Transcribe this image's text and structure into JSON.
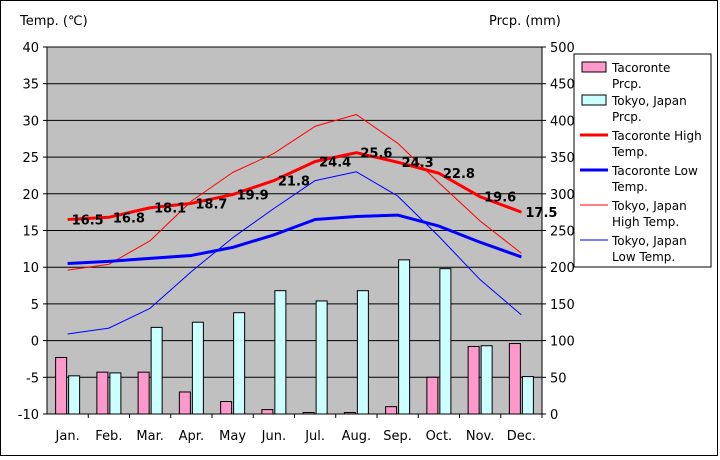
{
  "chart_data": {
    "type": "bar+line",
    "left_axis_label": "Temp. (℃)",
    "right_axis_label": "Prcp. (mm)",
    "categories": [
      "Jan.",
      "Feb.",
      "Mar.",
      "Apr.",
      "May",
      "Jun.",
      "Jul.",
      "Aug.",
      "Sep.",
      "Oct.",
      "Nov.",
      "Dec."
    ],
    "left_ylim": [
      -10,
      40
    ],
    "left_ticks": [
      40,
      35,
      30,
      25,
      20,
      15,
      10,
      5,
      0,
      -5,
      -10
    ],
    "right_ylim": [
      0,
      500
    ],
    "right_ticks": [
      500,
      450,
      400,
      350,
      300,
      250,
      200,
      150,
      100,
      50,
      0
    ],
    "grid": true,
    "legend_position": "right",
    "plot_background": "#c0c0c0",
    "bar_series": [
      {
        "name": "Tacoronte Prcp.",
        "color": "#ff99cc",
        "values": [
          77,
          57,
          57,
          30,
          17,
          6,
          2,
          2,
          10,
          50,
          92,
          96
        ]
      },
      {
        "name": "Tokyo, Japan Prcp.",
        "color": "#ccffff",
        "values": [
          52,
          56,
          118,
          125,
          138,
          168,
          154,
          168,
          210,
          198,
          93,
          51
        ]
      }
    ],
    "line_series": [
      {
        "name": "Tacoronte High Temp.",
        "color": "#ff0000",
        "width": 3,
        "values": [
          16.5,
          16.8,
          18.1,
          18.7,
          19.9,
          21.8,
          24.4,
          25.6,
          24.3,
          22.8,
          19.6,
          17.5
        ],
        "labels": [
          "16.5",
          "16.8",
          "18.1",
          "18.7",
          "19.9",
          "21.8",
          "24.4",
          "25.6",
          "24.3",
          "22.8",
          "19.6",
          "17.5"
        ]
      },
      {
        "name": "Tacoronte Low Temp.",
        "color": "#0000ff",
        "width": 3,
        "values": [
          10.5,
          10.8,
          11.2,
          11.6,
          12.7,
          14.4,
          16.5,
          16.9,
          17.1,
          15.6,
          13.4,
          11.4
        ]
      },
      {
        "name": "Tokyo, Japan High Temp.",
        "color": "#ff0000",
        "width": 1,
        "values": [
          9.6,
          10.4,
          13.6,
          19.0,
          22.9,
          25.5,
          29.2,
          30.8,
          26.9,
          21.5,
          16.3,
          11.9
        ]
      },
      {
        "name": "Tokyo, Japan Low Temp.",
        "color": "#0000ff",
        "width": 1,
        "values": [
          0.9,
          1.7,
          4.4,
          9.4,
          14.0,
          18.0,
          21.8,
          23.0,
          19.7,
          14.2,
          8.3,
          3.5
        ]
      }
    ],
    "legend_entries": [
      {
        "text": "Tacoronte Prcp.",
        "kind": "bar",
        "color": "#ff99cc"
      },
      {
        "text": "Tokyo, Japan Prcp.",
        "kind": "bar",
        "color": "#ccffff"
      },
      {
        "text": "Tacoronte High Temp.",
        "kind": "line",
        "color": "#ff0000",
        "width": 3
      },
      {
        "text": "Tacoronte Low Temp.",
        "kind": "line",
        "color": "#0000ff",
        "width": 3
      },
      {
        "text": "Tokyo, Japan High Temp.",
        "kind": "line",
        "color": "#ff0000",
        "width": 1
      },
      {
        "text": "Tokyo, Japan Low Temp.",
        "kind": "line",
        "color": "#0000ff",
        "width": 1
      }
    ]
  }
}
